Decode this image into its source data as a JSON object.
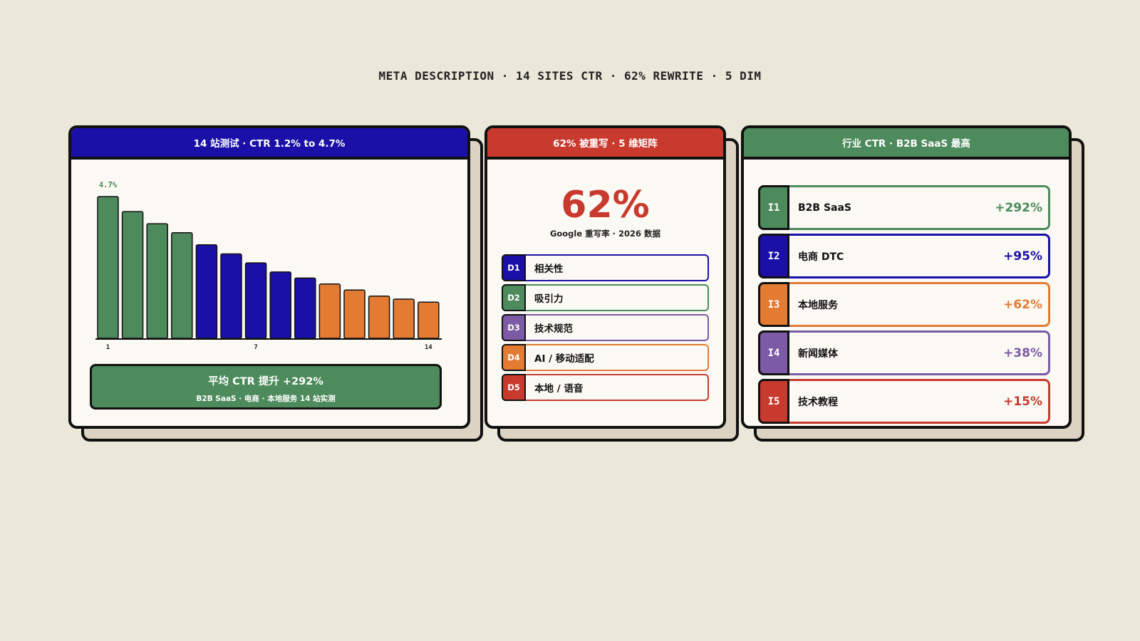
{
  "page_title": "META DESCRIPTION · 14 SITES CTR · 62% REWRITE · 5 DIM",
  "colors": {
    "background": "#ebe7d9",
    "blue": "#1a10a8",
    "red": "#c93a2e",
    "green": "#4d8a5c",
    "orange": "#e47b32",
    "purple": "#7c5aa6"
  },
  "left_card": {
    "header": "14 站测试 · CTR 1.2% to 4.7%",
    "peak_label": "4.7%",
    "summary_main": "平均 CTR 提升 +292%",
    "summary_sub": "B2B SaaS · 电商 · 本地服务 14 站实测"
  },
  "chart_data": {
    "type": "bar",
    "categories": [
      "1",
      "2",
      "3",
      "4",
      "5",
      "6",
      "7",
      "8",
      "9",
      "10",
      "11",
      "12",
      "13",
      "14"
    ],
    "values": [
      4.7,
      4.2,
      3.8,
      3.5,
      3.1,
      2.8,
      2.5,
      2.2,
      2.0,
      1.8,
      1.6,
      1.4,
      1.3,
      1.2
    ],
    "bar_colors": [
      "#4d8a5c",
      "#4d8a5c",
      "#4d8a5c",
      "#4d8a5c",
      "#1a10a8",
      "#1a10a8",
      "#1a10a8",
      "#1a10a8",
      "#1a10a8",
      "#e47b32",
      "#e47b32",
      "#e47b32",
      "#e47b32",
      "#e47b32"
    ],
    "tick_labels": [
      {
        "index": 0,
        "text": "1"
      },
      {
        "index": 6,
        "text": "7"
      },
      {
        "index": 13,
        "text": "14"
      }
    ],
    "ylim": [
      0,
      4.7
    ],
    "title": "",
    "xlabel": "",
    "ylabel": ""
  },
  "middle_card": {
    "header": "62% 被重写 · 5 维矩阵",
    "big_value": "62%",
    "caption": "Google 重写率 · 2026 数据",
    "dimensions": [
      {
        "id": "D1",
        "label": "相关性",
        "color": "#1a10a8"
      },
      {
        "id": "D2",
        "label": "吸引力",
        "color": "#4d8a5c"
      },
      {
        "id": "D3",
        "label": "技术规范",
        "color": "#7c5aa6"
      },
      {
        "id": "D4",
        "label": "AI / 移动适配",
        "color": "#e47b32"
      },
      {
        "id": "D5",
        "label": "本地 / 语音",
        "color": "#c93a2e"
      }
    ]
  },
  "right_card": {
    "header": "行业 CTR · B2B SaaS 最高",
    "industries": [
      {
        "id": "I1",
        "label": "B2B SaaS",
        "value": "+292%",
        "color": "#4d8a5c"
      },
      {
        "id": "I2",
        "label": "电商 DTC",
        "value": "+95%",
        "color": "#1a10a8"
      },
      {
        "id": "I3",
        "label": "本地服务",
        "value": "+62%",
        "color": "#e47b32"
      },
      {
        "id": "I4",
        "label": "新闻媒体",
        "value": "+38%",
        "color": "#7c5aa6"
      },
      {
        "id": "I5",
        "label": "技术教程",
        "value": "+15%",
        "color": "#c93a2e"
      }
    ]
  }
}
